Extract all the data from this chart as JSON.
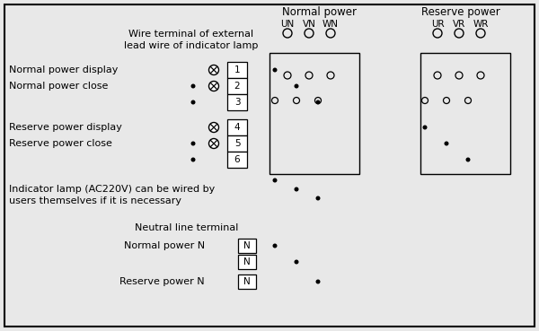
{
  "bg_color": "#e8e8e8",
  "line_color": "#000000",
  "title_normal": "Normal power",
  "title_reserve": "Reserve power",
  "labels_normal": [
    "UN",
    "VN",
    "WN"
  ],
  "labels_reserve": [
    "UR",
    "VR",
    "WR"
  ],
  "terminal_labels": [
    "1",
    "2",
    "3",
    "4",
    "5",
    "6"
  ],
  "neutral_labels": [
    "N",
    "N",
    "N"
  ],
  "text_wire_terminal": "Wire terminal of external\nlead wire of indicator lamp",
  "text_normal_display": "Normal power display",
  "text_normal_close": "Normal power close",
  "text_reserve_display": "Reserve power display",
  "text_reserve_close": "Reserve power close",
  "text_indicator": "Indicator lamp (AC220V) can be wired by\nusers themselves if it is necessary",
  "text_neutral": "Neutral line terminal",
  "text_normal_n": "Normal power N",
  "text_reserve_n": "Reserve power N",
  "figsize": [
    6.0,
    3.69
  ],
  "dpi": 100
}
